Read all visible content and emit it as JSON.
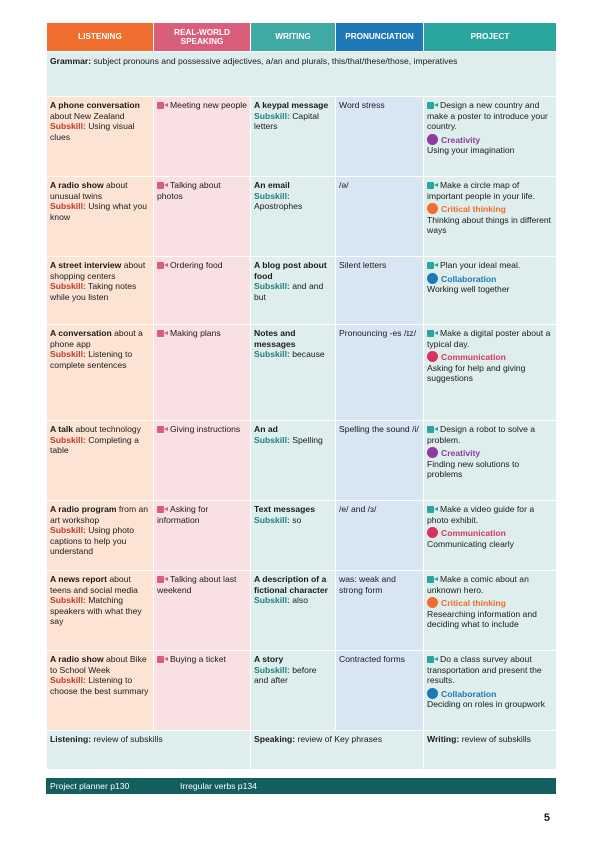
{
  "headers": [
    "LISTENING",
    "REAL-WORLD SPEAKING",
    "WRITING",
    "PRONUNCIATION",
    "PROJECT"
  ],
  "grammar": {
    "label": "Grammar:",
    "text": " subject pronouns and possessive adjectives, a/an and plurals, this/that/these/those, imperatives"
  },
  "subskill_label": "Subskill:",
  "rows": [
    {
      "listening": {
        "title": "A phone conversation",
        "rest": " about New Zealand",
        "sub": " Using visual clues"
      },
      "speaking": "Meeting new people",
      "writing": {
        "title": "A keypal message",
        "sub": " Capital letters"
      },
      "pron": "Word stress",
      "project": {
        "task": "Design a new country and make a poster to introduce your country.",
        "skill": "Creativity",
        "skill_class": "creativity",
        "desc": "Using your imagination"
      }
    },
    {
      "listening": {
        "title": "A radio show",
        "rest": " about unusual twins",
        "sub": " Using what you know"
      },
      "speaking": "Talking about photos",
      "writing": {
        "title": "An email",
        "sub": " Apostrophes"
      },
      "pron": "/ə/",
      "project": {
        "task": "Make a circle map of important people in your life.",
        "skill": "Critical thinking",
        "skill_class": "critical",
        "desc": "Thinking about things in different ways"
      }
    },
    {
      "listening": {
        "title": "A street interview",
        "rest": " about shopping centers",
        "sub": " Taking notes while you listen"
      },
      "speaking": "Ordering food",
      "writing": {
        "title": "A blog post about food",
        "sub": " and and but"
      },
      "pron": "Silent letters",
      "project": {
        "task": "Plan your ideal meal.",
        "skill": "Collaboration",
        "skill_class": "collab",
        "desc": "Working well together"
      }
    },
    {
      "listening": {
        "title": "A conversation",
        "rest": " about a phone app",
        "sub": " Listening to complete sentences"
      },
      "speaking": "Making plans",
      "writing": {
        "title": "Notes and messages",
        "sub": " because"
      },
      "pron": "Pronouncing -es /ɪz/",
      "project": {
        "task": "Make a digital poster about a typical day.",
        "skill": "Communication",
        "skill_class": "comm",
        "desc": "Asking for help and giving suggestions"
      }
    },
    {
      "listening": {
        "title": "A talk",
        "rest": " about technology",
        "sub": " Completing a table"
      },
      "speaking": "Giving instructions",
      "writing": {
        "title": "An ad",
        "sub": " Spelling"
      },
      "pron": "Spelling the sound /i/",
      "project": {
        "task": "Design a robot to solve a problem.",
        "skill": "Creativity",
        "skill_class": "creativity",
        "desc": "Finding new solutions to problems"
      }
    },
    {
      "listening": {
        "title": "A radio program",
        "rest": " from an art workshop",
        "sub": " Using photo captions to help you understand"
      },
      "speaking": "Asking for information",
      "writing": {
        "title": "Text messages",
        "sub": " so"
      },
      "pron": "/e/ and /ɜ/",
      "project": {
        "task": "Make a video guide for a photo exhibit.",
        "skill": "Communication",
        "skill_class": "comm",
        "desc": "Communicating clearly"
      }
    },
    {
      "listening": {
        "title": "A news report",
        "rest": " about teens and social media",
        "sub": " Matching speakers with what they say"
      },
      "speaking": "Talking about last weekend",
      "writing": {
        "title": "A description of a fictional character",
        "sub": " also"
      },
      "pron": "was: weak and strong form",
      "project": {
        "task": "Make a comic about an unknown hero.",
        "skill": "Critical thinking",
        "skill_class": "critical",
        "desc": "Researching information and deciding what to include"
      }
    },
    {
      "listening": {
        "title": "A radio show",
        "rest": " about Bike to School Week",
        "sub": " Listening to choose the best summary"
      },
      "speaking": "Buying a ticket",
      "writing": {
        "title": "A story",
        "sub": " before and after"
      },
      "pron": "Contracted forms",
      "project": {
        "task": "Do a class survey about transportation and present the results.",
        "skill": "Collaboration",
        "skill_class": "collab",
        "desc": "Deciding on roles in groupwork"
      }
    }
  ],
  "review": {
    "listening": {
      "label": "Listening:",
      "text": " review of subskills"
    },
    "speaking": {
      "label": "Speaking:",
      "text": " review of Key phrases"
    },
    "writing": {
      "label": "Writing:",
      "text": " review of subskills"
    }
  },
  "footer": {
    "left": "Project planner p130",
    "right": "Irregular verbs p134"
  },
  "page_number": "5",
  "icons": {
    "video": "video-camera-icon",
    "skill": "skill-badge-icon"
  }
}
